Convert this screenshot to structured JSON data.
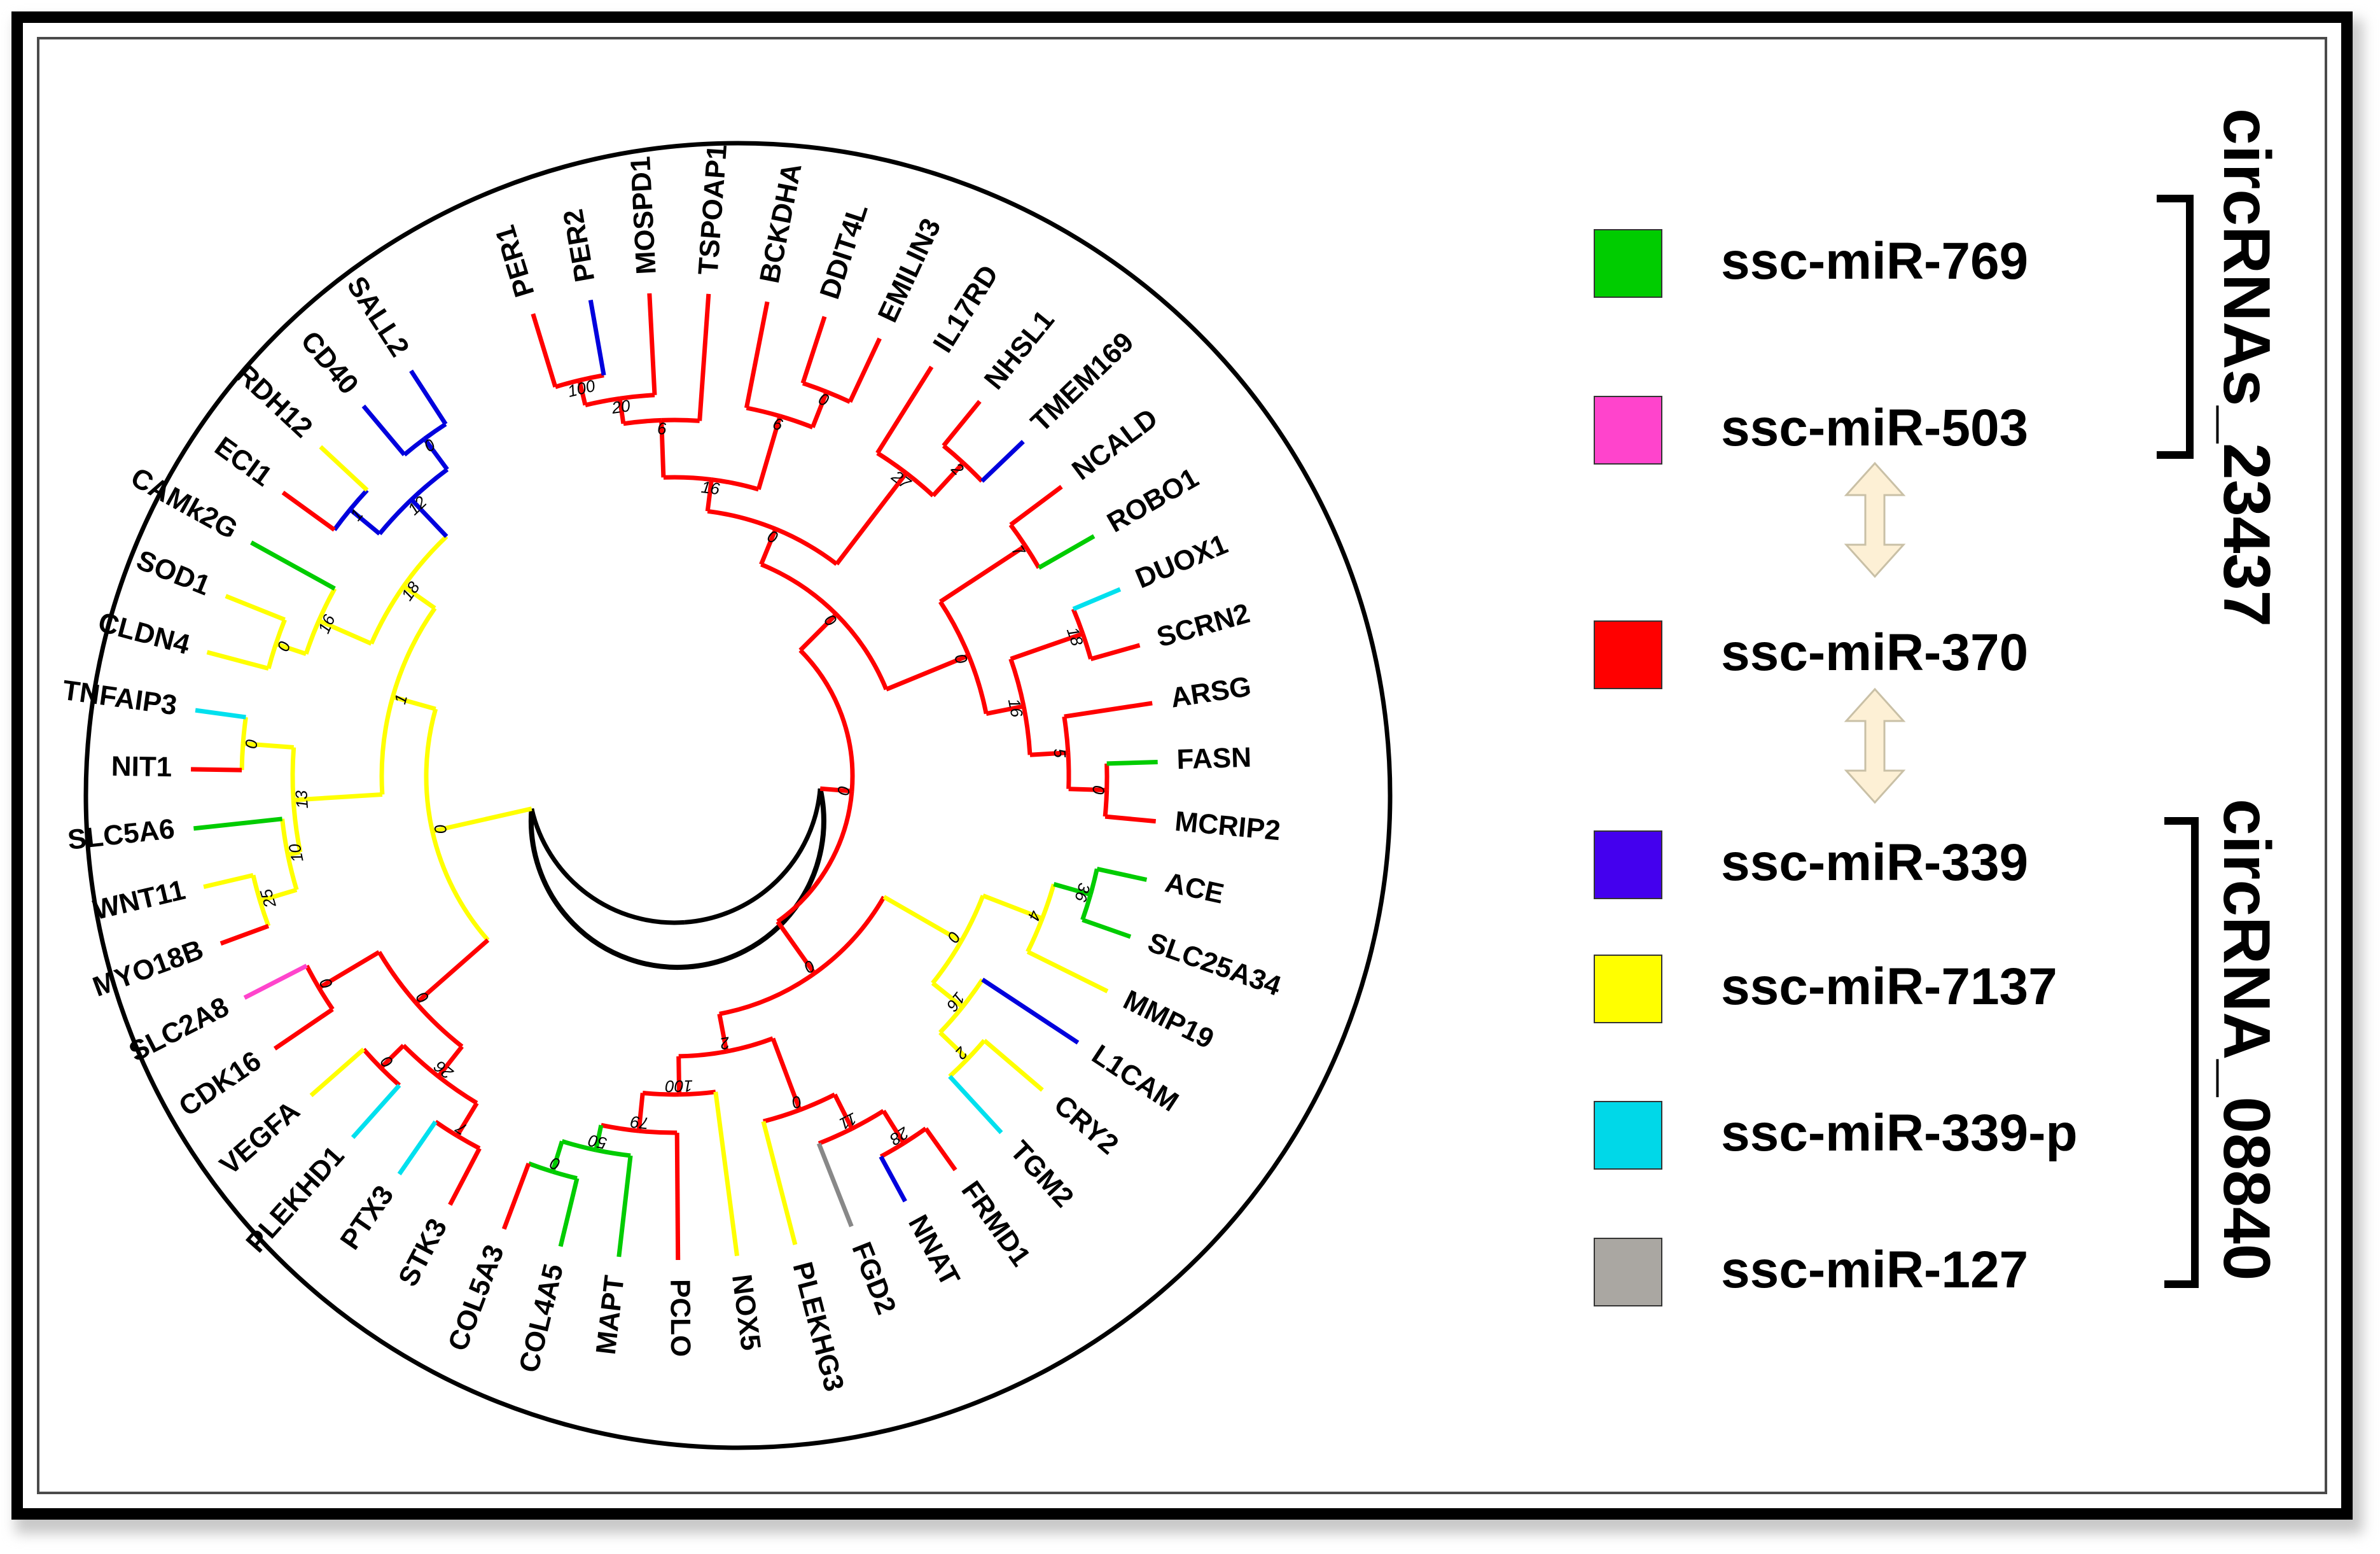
{
  "figure": {
    "type": "circular-phylogenetic-tree",
    "branch_colors": {
      "ssc-miR-769": "#00cc00",
      "ssc-miR-503": "#ff44cc",
      "ssc-miR-370": "#ff0000",
      "ssc-miR-339": "#0000dd",
      "ssc-miR-7137": "#ffff00",
      "ssc-miR-339-p": "#00e0ee",
      "ssc-miR-127": "#888888",
      "root": "#000000"
    }
  },
  "legend": [
    {
      "label": "ssc-miR-769",
      "color": "#00cc00"
    },
    {
      "label": "ssc-miR-503",
      "color": "#ff44cc"
    },
    {
      "label": "ssc-miR-370",
      "color": "#ff0000"
    },
    {
      "label": "ssc-miR-339",
      "color": "#4400ee"
    },
    {
      "label": "ssc-miR-7137",
      "color": "#ffff00"
    },
    {
      "label": "ssc-miR-339-p",
      "color": "#00d8e8"
    },
    {
      "label": "ssc-miR-127",
      "color": "#aaa7a2"
    }
  ],
  "groups": [
    {
      "label": "circRNAs_23437",
      "members": [
        "ssc-miR-769",
        "ssc-miR-503"
      ]
    },
    {
      "label": "circRNA_08840",
      "members": [
        "ssc-miR-339",
        "ssc-miR-7137",
        "ssc-miR-339-p",
        "ssc-miR-127"
      ]
    }
  ],
  "arrow_color": "#fdf0d5",
  "leaves": [
    {
      "name": "PER1",
      "color": "#ff0000"
    },
    {
      "name": "PER2",
      "color": "#0000dd"
    },
    {
      "name": "MOSPD1",
      "color": "#ff0000"
    },
    {
      "name": "TSPOAP1",
      "color": "#ff0000"
    },
    {
      "name": "BCKDHA",
      "color": "#ff0000"
    },
    {
      "name": "DDIT4L",
      "color": "#ff0000"
    },
    {
      "name": "EMILIN3",
      "color": "#ff0000"
    },
    {
      "name": "IL17RD",
      "color": "#ff0000"
    },
    {
      "name": "NHSL1",
      "color": "#ff0000"
    },
    {
      "name": "TMEM169",
      "color": "#0000dd"
    },
    {
      "name": "NCALD",
      "color": "#ff0000"
    },
    {
      "name": "ROBO1",
      "color": "#00cc00"
    },
    {
      "name": "DUOX1",
      "color": "#00e0ee"
    },
    {
      "name": "SCRN2",
      "color": "#ff0000"
    },
    {
      "name": "ARSG",
      "color": "#ff0000"
    },
    {
      "name": "FASN",
      "color": "#00cc00"
    },
    {
      "name": "MCRIP2",
      "color": "#ff0000"
    },
    {
      "name": "ACE",
      "color": "#00cc00"
    },
    {
      "name": "SLC25A34",
      "color": "#00cc00"
    },
    {
      "name": "MMP19",
      "color": "#ffff00"
    },
    {
      "name": "L1CAM",
      "color": "#0000dd"
    },
    {
      "name": "CRY2",
      "color": "#ffff00"
    },
    {
      "name": "TGM2",
      "color": "#00e0ee"
    },
    {
      "name": "FRMD1",
      "color": "#ff0000"
    },
    {
      "name": "NNAT",
      "color": "#0000dd"
    },
    {
      "name": "FGD2",
      "color": "#888888"
    },
    {
      "name": "PLEKHG3",
      "color": "#ffff00"
    },
    {
      "name": "NOX5",
      "color": "#ffff00"
    },
    {
      "name": "PCLO",
      "color": "#ff0000"
    },
    {
      "name": "MAPT",
      "color": "#00cc00"
    },
    {
      "name": "COL4A5",
      "color": "#00cc00"
    },
    {
      "name": "COL5A3",
      "color": "#ff0000"
    },
    {
      "name": "STK3",
      "color": "#ff0000"
    },
    {
      "name": "PTX3",
      "color": "#00e0ee"
    },
    {
      "name": "PLEKHD1",
      "color": "#00e0ee"
    },
    {
      "name": "VEGFA",
      "color": "#ffff00"
    },
    {
      "name": "CDK16",
      "color": "#ff0000"
    },
    {
      "name": "SLC2A8",
      "color": "#ff44cc"
    },
    {
      "name": "MYO18B",
      "color": "#ff0000"
    },
    {
      "name": "WNT11",
      "color": "#ffff00"
    },
    {
      "name": "SLC5A6",
      "color": "#00cc00"
    },
    {
      "name": "NIT1",
      "color": "#ff0000"
    },
    {
      "name": "TNFAIP3",
      "color": "#00e0ee"
    },
    {
      "name": "CLDN4",
      "color": "#ffff00"
    },
    {
      "name": "SOD1",
      "color": "#ffff00"
    },
    {
      "name": "CAMk2G",
      "color": "#00cc00"
    },
    {
      "name": "ECI1",
      "color": "#ff0000"
    },
    {
      "name": "RDH12",
      "color": "#ffff00"
    },
    {
      "name": "CD40",
      "color": "#0000dd"
    },
    {
      "name": "SALL2",
      "color": "#0000dd"
    }
  ],
  "bootstrap_values": [
    "100",
    "20",
    "6",
    "0",
    "6",
    "16",
    "2",
    "27",
    "0",
    "7",
    "18",
    "0",
    "5",
    "16",
    "0",
    "0",
    "36",
    "4",
    "2",
    "16",
    "0",
    "28",
    "11",
    "0",
    "0",
    "50",
    "79",
    "100",
    "2",
    "0",
    "0",
    "7",
    "0",
    "26",
    "0",
    "0",
    "25",
    "10",
    "0",
    "13",
    "0",
    "16",
    "1",
    "0",
    "12",
    "18",
    "1",
    "0",
    "0",
    "0",
    "0"
  ]
}
